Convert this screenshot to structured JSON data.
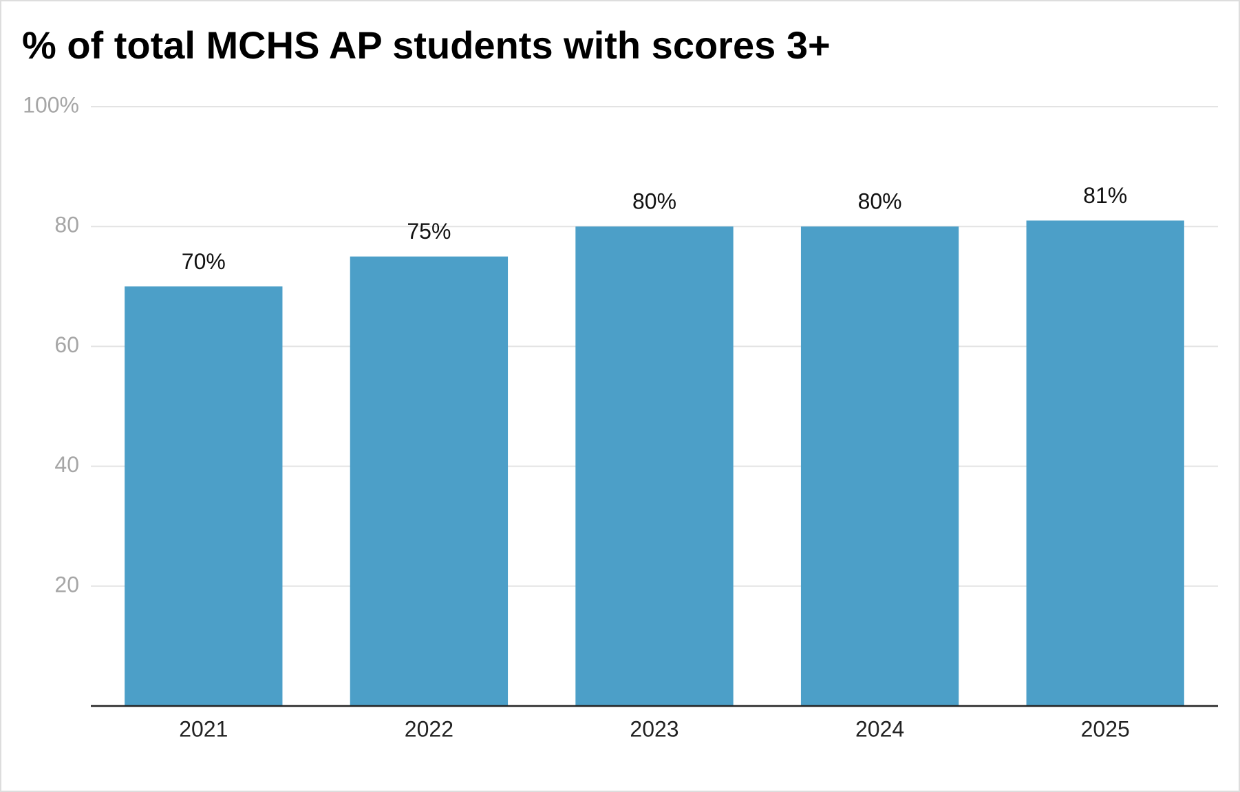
{
  "chart_data": {
    "type": "bar",
    "title": "% of total MCHS AP students with scores 3+",
    "categories": [
      "2021",
      "2022",
      "2023",
      "2024",
      "2025"
    ],
    "values": [
      70,
      75,
      80,
      80,
      81
    ],
    "value_labels": [
      "70%",
      "75%",
      "80%",
      "80%",
      "81%"
    ],
    "color": "#4c9fc8",
    "ylim": [
      0,
      100
    ],
    "yticks": [
      20,
      40,
      60,
      80,
      {
        "value": 100,
        "label": "100%"
      }
    ],
    "grid": true
  }
}
